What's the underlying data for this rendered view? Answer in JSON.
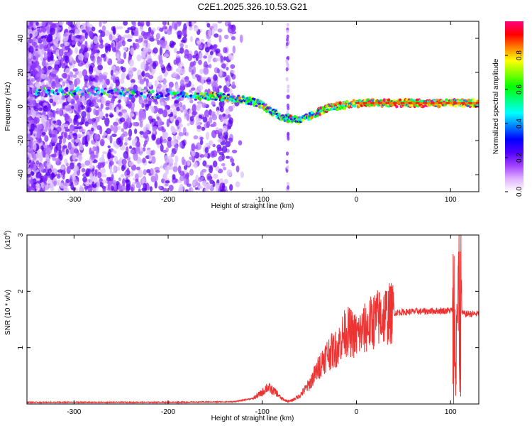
{
  "title": "C2E1.2025.326.10.53.G21",
  "chart_data": [
    {
      "type": "heatmap",
      "xlabel": "Height of straight line (km)",
      "ylabel": "Frequency (Hz)",
      "xlim": [
        -350,
        130
      ],
      "ylim": [
        -50,
        50
      ],
      "xticks": [
        -300,
        -200,
        -100,
        0,
        100
      ],
      "yticks": [
        -40,
        -20,
        0,
        20,
        40
      ],
      "colorbar": {
        "label": "Normalized spectral amplitude",
        "range": [
          0,
          1
        ],
        "ticks": [
          "0.0",
          "0.2",
          "0.4",
          "0.6",
          "0.8"
        ],
        "tick_values": [
          0,
          0.2,
          0.4,
          0.6,
          0.8
        ],
        "colors": [
          "#ffffff",
          "#e0b0ff",
          "#a040ff",
          "#5000ff",
          "#0000ff",
          "#0080ff",
          "#00ffff",
          "#00ff80",
          "#00ff00",
          "#80ff00",
          "#ffff00",
          "#ff8000",
          "#ff0000",
          "#ff0080"
        ]
      },
      "ridge": {
        "x": [
          -330,
          -300,
          -250,
          -200,
          -170,
          -150,
          -130,
          -110,
          -100,
          -90,
          -80,
          -70,
          -60,
          -50,
          -40,
          -30,
          -20,
          -10,
          0,
          20,
          40,
          60,
          80,
          100,
          110,
          130
        ],
        "y": [
          9,
          9,
          8,
          7,
          6,
          6,
          5,
          3,
          1,
          -3,
          -6,
          -7,
          -8,
          -6,
          -3,
          -1,
          0,
          1,
          2,
          2,
          2,
          2,
          2,
          2,
          2,
          2
        ]
      }
    },
    {
      "type": "line",
      "xlabel": "Height of straight line (km)",
      "ylabel": "SNR (10 * v/v)",
      "multiplier": "(x10",
      "multiplier_exp": "4",
      "multiplier_close": ")",
      "xlim": [
        -350,
        130
      ],
      "ylim": [
        0,
        3
      ],
      "xticks": [
        -300,
        -200,
        -100,
        0,
        100
      ],
      "yticks": [
        1,
        2,
        3
      ],
      "color": "#ee3333",
      "x": [
        -350,
        -200,
        -130,
        -110,
        -100,
        -95,
        -90,
        -85,
        -80,
        -75,
        -70,
        -60,
        -50,
        -45,
        -40,
        -35,
        -30,
        -25,
        -20,
        -15,
        -10,
        -5,
        0,
        10,
        20,
        30,
        40,
        60,
        80,
        100,
        105,
        108,
        110,
        115,
        130
      ],
      "y": [
        0.03,
        0.03,
        0.04,
        0.1,
        0.2,
        0.3,
        0.25,
        0.2,
        0.1,
        0.06,
        0.05,
        0.15,
        0.35,
        0.5,
        0.65,
        0.8,
        0.9,
        0.95,
        1.0,
        1.2,
        1.3,
        1.25,
        1.2,
        1.35,
        1.5,
        1.58,
        1.62,
        1.64,
        1.65,
        1.66,
        1.7,
        1.6,
        1.62,
        1.6,
        1.6
      ]
    }
  ]
}
